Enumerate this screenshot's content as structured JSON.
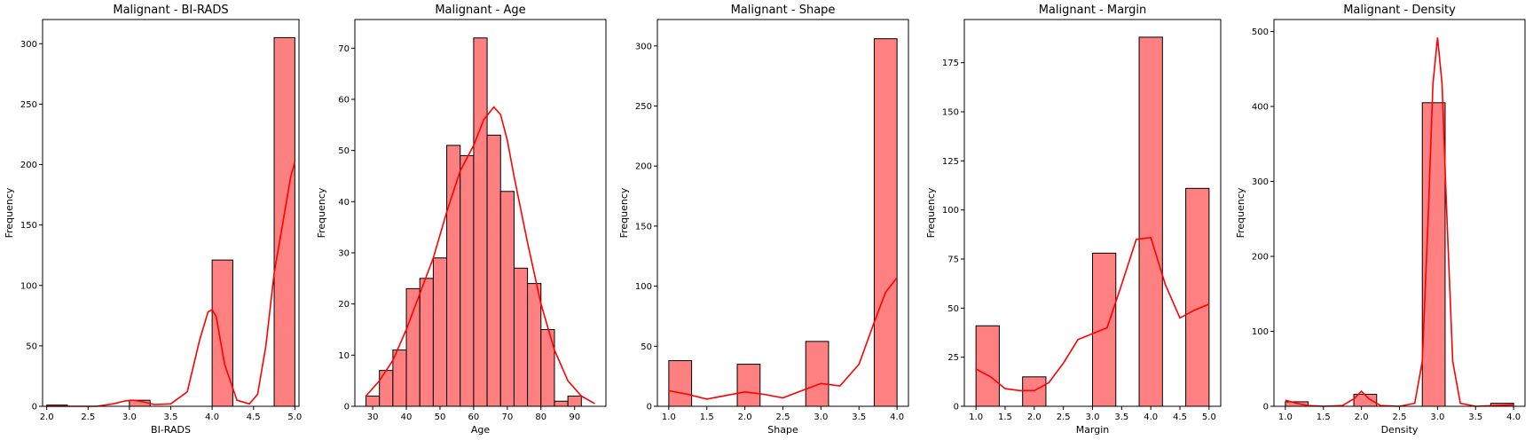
{
  "colors": {
    "bar_fill": "#ff8080",
    "bar_edge": "#000000",
    "kde_line": "#ff0000"
  },
  "chart_data": [
    {
      "type": "bar",
      "title": "Malignant - BI-RADS",
      "xlabel": "BI-RADS",
      "ylabel": "Frequency",
      "xlim": [
        1.95,
        5.05
      ],
      "ylim": [
        0,
        320
      ],
      "xticks": [
        2.0,
        2.5,
        3.0,
        3.5,
        4.0,
        4.5,
        5.0
      ],
      "xtick_labels": [
        "2.0",
        "2.5",
        "3.0",
        "3.5",
        "4.0",
        "4.5",
        "5.0"
      ],
      "yticks": [
        0,
        50,
        100,
        150,
        200,
        250,
        300
      ],
      "bins": [
        [
          2.0,
          2.25
        ],
        [
          2.25,
          2.5
        ],
        [
          2.5,
          2.75
        ],
        [
          2.75,
          3.0
        ],
        [
          3.0,
          3.25
        ],
        [
          3.25,
          3.5
        ],
        [
          3.5,
          3.75
        ],
        [
          3.75,
          4.0
        ],
        [
          4.0,
          4.25
        ],
        [
          4.25,
          4.5
        ],
        [
          4.5,
          4.75
        ],
        [
          4.75,
          5.0
        ]
      ],
      "values": [
        1,
        0,
        0,
        0,
        5,
        0,
        0,
        0,
        121,
        0,
        0,
        305
      ],
      "kde_x": [
        2.0,
        2.3,
        2.6,
        2.8,
        2.95,
        3.05,
        3.15,
        3.3,
        3.5,
        3.7,
        3.85,
        3.95,
        4.0,
        4.05,
        4.15,
        4.3,
        4.45,
        4.55,
        4.65,
        4.75,
        4.85,
        4.95,
        5.0
      ],
      "kde_y": [
        0,
        0,
        0,
        2,
        4.5,
        5,
        4,
        1.5,
        2,
        12,
        55,
        78,
        80,
        74,
        35,
        5,
        2,
        10,
        50,
        110,
        150,
        190,
        202
      ]
    },
    {
      "type": "bar",
      "title": "Malignant - Age",
      "xlabel": "Age",
      "ylabel": "Frequency",
      "xlim": [
        24.7,
        99.3
      ],
      "ylim": [
        0,
        75.6
      ],
      "xticks": [
        30,
        40,
        50,
        60,
        70,
        80,
        90
      ],
      "xtick_labels": [
        "30",
        "40",
        "50",
        "60",
        "70",
        "80",
        "90"
      ],
      "yticks": [
        0,
        10,
        20,
        30,
        40,
        50,
        60,
        70
      ],
      "bins": [
        [
          28,
          32
        ],
        [
          32,
          36
        ],
        [
          36,
          40
        ],
        [
          40,
          44
        ],
        [
          44,
          48
        ],
        [
          48,
          52
        ],
        [
          52,
          56
        ],
        [
          56,
          60
        ],
        [
          60,
          64
        ],
        [
          64,
          68
        ],
        [
          68,
          72
        ],
        [
          72,
          76
        ],
        [
          76,
          80
        ],
        [
          80,
          84
        ],
        [
          84,
          88
        ],
        [
          88,
          92
        ],
        [
          92,
          96
        ]
      ],
      "values": [
        2,
        7,
        11,
        23,
        25,
        29,
        51,
        49,
        72,
        53,
        42,
        27,
        24,
        15,
        1,
        2,
        0
      ],
      "kde_x": [
        28,
        32,
        36,
        40,
        44,
        48,
        52,
        56,
        60,
        63,
        66,
        68,
        70,
        72,
        76,
        80,
        84,
        88,
        92,
        96
      ],
      "kde_y": [
        2,
        5,
        9,
        15,
        22,
        29,
        38,
        46,
        51,
        56,
        58.5,
        57,
        52,
        45,
        32,
        20,
        11,
        5,
        2,
        0.5
      ]
    },
    {
      "type": "bar",
      "title": "Malignant - Shape",
      "xlabel": "Shape",
      "ylabel": "Frequency",
      "xlim": [
        0.85,
        4.15
      ],
      "ylim": [
        0,
        322
      ],
      "xticks": [
        1.0,
        1.5,
        2.0,
        2.5,
        3.0,
        3.5,
        4.0
      ],
      "xtick_labels": [
        "1.0",
        "1.5",
        "2.0",
        "2.5",
        "3.0",
        "3.5",
        "4.0"
      ],
      "yticks": [
        0,
        50,
        100,
        150,
        200,
        250,
        300
      ],
      "bins": [
        [
          1.0,
          1.3
        ],
        [
          1.3,
          1.6
        ],
        [
          1.6,
          1.9
        ],
        [
          1.9,
          2.2
        ],
        [
          2.2,
          2.5
        ],
        [
          2.5,
          2.8
        ],
        [
          2.8,
          3.1
        ],
        [
          3.1,
          3.4
        ],
        [
          3.4,
          3.7
        ],
        [
          3.7,
          4.0
        ]
      ],
      "values": [
        38,
        0,
        0,
        35,
        0,
        0,
        54,
        0,
        0,
        306
      ],
      "kde_x": [
        1.0,
        1.25,
        1.5,
        1.75,
        2.0,
        2.25,
        2.5,
        2.75,
        3.0,
        3.25,
        3.5,
        3.7,
        3.85,
        4.0
      ],
      "kde_y": [
        13,
        10,
        6,
        9,
        12,
        10,
        7,
        13,
        19,
        17,
        35,
        70,
        95,
        107
      ]
    },
    {
      "type": "bar",
      "title": "Malignant - Margin",
      "xlabel": "Margin",
      "ylabel": "Frequency",
      "xlim": [
        0.8,
        5.2
      ],
      "ylim": [
        0,
        197
      ],
      "xticks": [
        1.0,
        1.5,
        2.0,
        2.5,
        3.0,
        3.5,
        4.0,
        4.5,
        5.0
      ],
      "xtick_labels": [
        "1.0",
        "1.5",
        "2.0",
        "2.5",
        "3.0",
        "3.5",
        "4.0",
        "4.5",
        "5.0"
      ],
      "yticks": [
        0,
        25,
        50,
        75,
        100,
        125,
        150,
        175
      ],
      "bins": [
        [
          1.0,
          1.4
        ],
        [
          1.4,
          1.8
        ],
        [
          1.8,
          2.2
        ],
        [
          2.2,
          2.6
        ],
        [
          2.6,
          3.0
        ],
        [
          3.0,
          3.4
        ],
        [
          3.4,
          3.8
        ],
        [
          3.8,
          4.2
        ],
        [
          4.2,
          4.6
        ],
        [
          4.6,
          5.0
        ]
      ],
      "values": [
        41,
        0,
        15,
        0,
        0,
        78,
        0,
        188,
        0,
        111
      ],
      "kde_x": [
        1.0,
        1.25,
        1.5,
        1.75,
        2.0,
        2.25,
        2.5,
        2.75,
        3.0,
        3.25,
        3.5,
        3.75,
        4.0,
        4.25,
        4.5,
        4.75,
        5.0
      ],
      "kde_y": [
        19,
        15,
        9,
        8,
        8,
        12,
        22,
        34,
        37,
        40,
        62,
        85,
        86,
        62,
        45,
        49,
        52
      ]
    },
    {
      "type": "bar",
      "title": "Malignant - Density",
      "xlabel": "Density",
      "ylabel": "Frequency",
      "xlim": [
        0.85,
        4.15
      ],
      "ylim": [
        0,
        516
      ],
      "xticks": [
        1.0,
        1.5,
        2.0,
        2.5,
        3.0,
        3.5,
        4.0
      ],
      "xtick_labels": [
        "1.0",
        "1.5",
        "2.0",
        "2.5",
        "3.0",
        "3.5",
        "4.0"
      ],
      "yticks": [
        0,
        100,
        200,
        300,
        400,
        500
      ],
      "bins": [
        [
          1.0,
          1.3
        ],
        [
          1.3,
          1.6
        ],
        [
          1.6,
          1.9
        ],
        [
          1.9,
          2.2
        ],
        [
          2.2,
          2.5
        ],
        [
          2.5,
          2.8
        ],
        [
          2.8,
          3.1
        ],
        [
          3.1,
          3.4
        ],
        [
          3.4,
          3.7
        ],
        [
          3.7,
          4.0
        ]
      ],
      "values": [
        6,
        0,
        0,
        16,
        0,
        0,
        405,
        0,
        0,
        4
      ],
      "kde_x": [
        1.0,
        1.15,
        1.3,
        1.5,
        1.75,
        1.9,
        2.0,
        2.1,
        2.25,
        2.5,
        2.7,
        2.8,
        2.88,
        2.94,
        3.0,
        3.06,
        3.12,
        3.2,
        3.3,
        3.5,
        3.75,
        4.0
      ],
      "kde_y": [
        8,
        4,
        1,
        0,
        1,
        10,
        20,
        10,
        1,
        0,
        4,
        60,
        260,
        430,
        492,
        430,
        260,
        60,
        4,
        0,
        1,
        2
      ]
    }
  ]
}
